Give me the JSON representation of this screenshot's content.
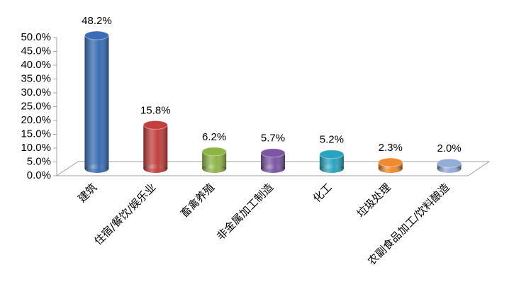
{
  "chart_data": {
    "type": "bar",
    "categories": [
      "建筑",
      "住宿/餐饮/娱乐业",
      "畜禽养殖",
      "非金属加工制造",
      "化工",
      "垃圾处理",
      "农副食品加工/饮料酿造"
    ],
    "values": [
      48.2,
      15.8,
      6.2,
      5.7,
      5.2,
      2.3,
      2.0
    ],
    "value_labels": [
      "48.2%",
      "15.8%",
      "6.2%",
      "5.7%",
      "5.2%",
      "2.3%",
      "2.0%"
    ],
    "colors": [
      "#3a6db5",
      "#c0403d",
      "#8db447",
      "#7a56a3",
      "#2aa3bf",
      "#f08a30",
      "#93acd8"
    ],
    "ylim": [
      0,
      50
    ],
    "yticks": [
      {
        "value": 0,
        "label": "0.0%"
      },
      {
        "value": 5,
        "label": "5.0%"
      },
      {
        "value": 10,
        "label": "10.0%"
      },
      {
        "value": 15,
        "label": "15.0%"
      },
      {
        "value": 20,
        "label": "20.0%"
      },
      {
        "value": 25,
        "label": "25.0%"
      },
      {
        "value": 30,
        "label": "30.0%"
      },
      {
        "value": 35,
        "label": "35.0%"
      },
      {
        "value": 40,
        "label": "40.0%"
      },
      {
        "value": 45,
        "label": "45.0%"
      },
      {
        "value": 50,
        "label": "50.0%"
      }
    ]
  }
}
